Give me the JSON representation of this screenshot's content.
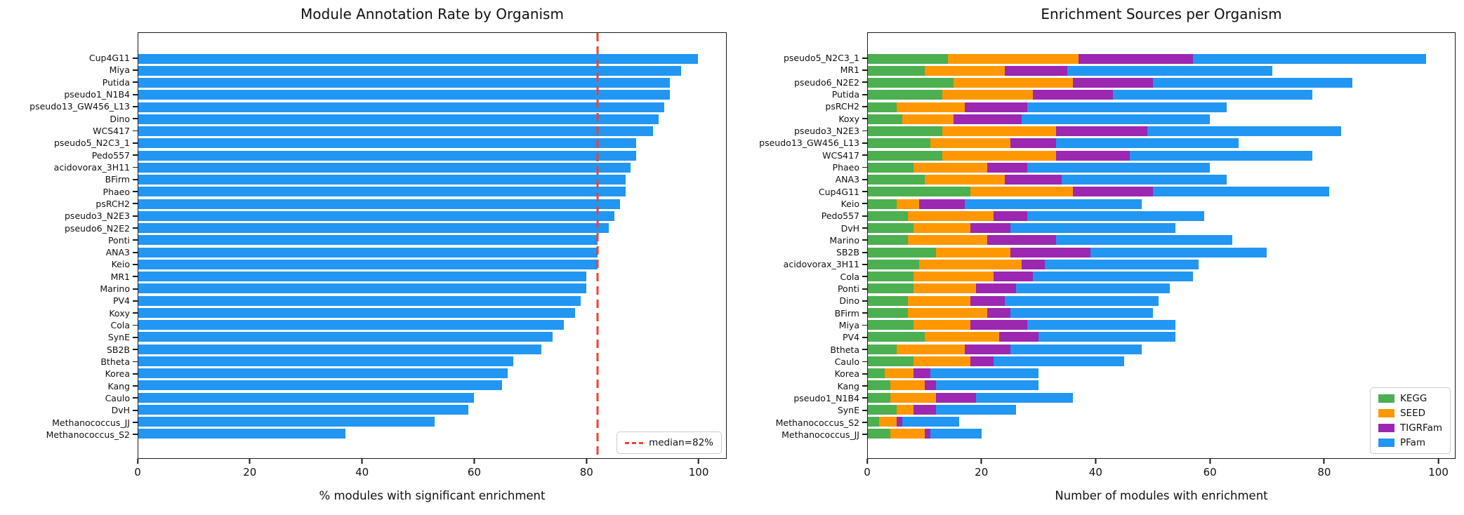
{
  "chart_data": [
    {
      "type": "bar",
      "title": "Module Annotation Rate by Organism",
      "xlabel": "% modules with significant enrichment",
      "xticks": [
        0,
        20,
        40,
        60,
        80,
        100
      ],
      "xlim": [
        0,
        105
      ],
      "grid": false,
      "bar_color": "#2196f3",
      "categories": [
        "Cup4G11",
        "Miya",
        "Putida",
        "pseudo1_N1B4",
        "pseudo13_GW456_L13",
        "Dino",
        "WCS417",
        "pseudo5_N2C3_1",
        "Pedo557",
        "acidovorax_3H11",
        "BFirm",
        "Phaeo",
        "psRCH2",
        "pseudo3_N2E3",
        "pseudo6_N2E2",
        "Ponti",
        "ANA3",
        "Keio",
        "MR1",
        "Marino",
        "PV4",
        "Koxy",
        "Cola",
        "SynE",
        "SB2B",
        "Btheta",
        "Korea",
        "Kang",
        "Caulo",
        "DvH",
        "Methanococcus_JJ",
        "Methanococcus_S2"
      ],
      "values": [
        100,
        97,
        95,
        95,
        94,
        93,
        92,
        89,
        89,
        88,
        87,
        87,
        86,
        85,
        84,
        82,
        82,
        82,
        80,
        80,
        79,
        78,
        76,
        74,
        72,
        67,
        66,
        65,
        60,
        59,
        53,
        37
      ],
      "median_line": {
        "value": 82,
        "label": "median=82%",
        "color": "#ef4135",
        "style": "dashed"
      },
      "legend_position": "lower right"
    },
    {
      "type": "stacked_bar",
      "title": "Enrichment Sources per Organism",
      "xlabel": "Number of modules with enrichment",
      "xticks": [
        0,
        20,
        40,
        60,
        80,
        100
      ],
      "xlim": [
        0,
        103
      ],
      "grid": false,
      "categories": [
        "pseudo5_N2C3_1",
        "MR1",
        "pseudo6_N2E2",
        "Putida",
        "psRCH2",
        "Koxy",
        "pseudo3_N2E3",
        "pseudo13_GW456_L13",
        "WCS417",
        "Phaeo",
        "ANA3",
        "Cup4G11",
        "Keio",
        "Pedo557",
        "DvH",
        "Marino",
        "SB2B",
        "acidovorax_3H11",
        "Cola",
        "Ponti",
        "Dino",
        "BFirm",
        "Miya",
        "PV4",
        "Btheta",
        "Caulo",
        "Korea",
        "Kang",
        "pseudo1_N1B4",
        "SynE",
        "Methanococcus_S2",
        "Methanococcus_JJ"
      ],
      "series": [
        {
          "name": "KEGG",
          "color": "#4caf50",
          "values": [
            14,
            10,
            15,
            13,
            5,
            6,
            13,
            11,
            13,
            8,
            10,
            18,
            5,
            7,
            8,
            7,
            12,
            9,
            8,
            8,
            7,
            7,
            8,
            10,
            5,
            8,
            3,
            4,
            4,
            5,
            2,
            4
          ]
        },
        {
          "name": "SEED",
          "color": "#ff9800",
          "values": [
            23,
            14,
            21,
            16,
            12,
            9,
            20,
            14,
            20,
            13,
            14,
            18,
            4,
            15,
            10,
            14,
            13,
            18,
            14,
            11,
            11,
            14,
            10,
            13,
            12,
            10,
            5,
            6,
            8,
            3,
            3,
            6
          ]
        },
        {
          "name": "TIGRFam",
          "color": "#9c27b0",
          "values": [
            20,
            11,
            14,
            14,
            11,
            12,
            16,
            8,
            13,
            7,
            10,
            14,
            8,
            6,
            7,
            12,
            14,
            4,
            7,
            7,
            6,
            4,
            10,
            7,
            8,
            4,
            3,
            2,
            7,
            4,
            1,
            1
          ]
        },
        {
          "name": "PFam",
          "color": "#2196f3",
          "values": [
            41,
            36,
            35,
            35,
            35,
            33,
            34,
            32,
            32,
            32,
            29,
            31,
            31,
            31,
            29,
            31,
            31,
            27,
            28,
            27,
            27,
            25,
            26,
            24,
            23,
            23,
            19,
            18,
            17,
            14,
            10,
            9
          ]
        }
      ],
      "legend_position": "lower right"
    }
  ]
}
